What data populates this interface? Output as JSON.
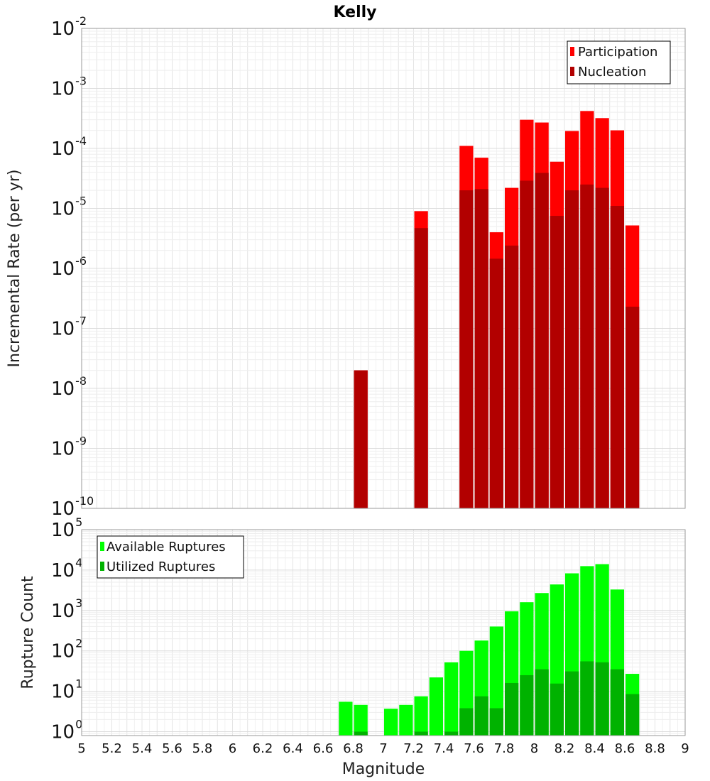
{
  "chart_data": [
    {
      "type": "bar",
      "title": "Kelly",
      "xlabel": "",
      "ylabel": "Incremental Rate (per yr)",
      "yscale": "log",
      "xlim": [
        5,
        9
      ],
      "ylim": [
        1e-10,
        0.01
      ],
      "y_ticks": [
        {
          "base": "10",
          "exp": "-10",
          "value": 1e-10
        },
        {
          "base": "10",
          "exp": "-9",
          "value": 1e-09
        },
        {
          "base": "10",
          "exp": "-8",
          "value": 1e-08
        },
        {
          "base": "10",
          "exp": "-7",
          "value": 1e-07
        },
        {
          "base": "10",
          "exp": "-6",
          "value": 1e-06
        },
        {
          "base": "10",
          "exp": "-5",
          "value": 1e-05
        },
        {
          "base": "10",
          "exp": "-4",
          "value": 0.0001
        },
        {
          "base": "10",
          "exp": "-3",
          "value": 0.001
        },
        {
          "base": "10",
          "exp": "-2",
          "value": 0.01
        }
      ],
      "grid": true,
      "legend_position": "top-right",
      "series": [
        {
          "name": "Participation",
          "color": "#ff0000",
          "points": [
            {
              "x": 6.85,
              "y": 2e-08
            },
            {
              "x": 7.25,
              "y": 9e-06
            },
            {
              "x": 7.55,
              "y": 0.00011
            },
            {
              "x": 7.65,
              "y": 7e-05
            },
            {
              "x": 7.75,
              "y": 4e-06
            },
            {
              "x": 7.85,
              "y": 2.2e-05
            },
            {
              "x": 7.95,
              "y": 0.0003
            },
            {
              "x": 8.05,
              "y": 0.00027
            },
            {
              "x": 8.15,
              "y": 6e-05
            },
            {
              "x": 8.25,
              "y": 0.000195
            },
            {
              "x": 8.35,
              "y": 0.00042
            },
            {
              "x": 8.45,
              "y": 0.00032
            },
            {
              "x": 8.55,
              "y": 0.0002
            },
            {
              "x": 8.65,
              "y": 5.2e-06
            }
          ]
        },
        {
          "name": "Nucleation",
          "color": "#b20000",
          "points": [
            {
              "x": 6.85,
              "y": 2e-08
            },
            {
              "x": 7.25,
              "y": 4.7e-06
            },
            {
              "x": 7.55,
              "y": 2e-05
            },
            {
              "x": 7.65,
              "y": 2.1e-05
            },
            {
              "x": 7.75,
              "y": 1.45e-06
            },
            {
              "x": 7.85,
              "y": 2.4e-06
            },
            {
              "x": 7.95,
              "y": 2.9e-05
            },
            {
              "x": 8.05,
              "y": 3.9e-05
            },
            {
              "x": 8.15,
              "y": 7.5e-06
            },
            {
              "x": 8.25,
              "y": 2e-05
            },
            {
              "x": 8.35,
              "y": 2.5e-05
            },
            {
              "x": 8.45,
              "y": 2.2e-05
            },
            {
              "x": 8.55,
              "y": 1.1e-05
            },
            {
              "x": 8.65,
              "y": 2.3e-07
            }
          ]
        }
      ]
    },
    {
      "type": "bar",
      "title": "",
      "xlabel": "Magnitude",
      "ylabel": "Rupture Count",
      "yscale": "log",
      "xlim": [
        5,
        9
      ],
      "ylim": [
        0.8,
        100000.0
      ],
      "x_ticks": [
        "5",
        "5.2",
        "5.4",
        "5.6",
        "5.8",
        "6",
        "6.2",
        "6.4",
        "6.6",
        "6.8",
        "7",
        "7.2",
        "7.4",
        "7.6",
        "7.8",
        "8",
        "8.2",
        "8.4",
        "8.6",
        "8.8",
        "9"
      ],
      "y_ticks": [
        {
          "base": "10",
          "exp": "0",
          "value": 1
        },
        {
          "base": "10",
          "exp": "1",
          "value": 10
        },
        {
          "base": "10",
          "exp": "2",
          "value": 100
        },
        {
          "base": "10",
          "exp": "3",
          "value": 1000
        },
        {
          "base": "10",
          "exp": "4",
          "value": 10000
        },
        {
          "base": "10",
          "exp": "5",
          "value": 100000
        }
      ],
      "grid": true,
      "legend_position": "top-left",
      "series": [
        {
          "name": "Available Ruptures",
          "color": "#00ff00",
          "points": [
            {
              "x": 6.75,
              "y": 5.5
            },
            {
              "x": 6.85,
              "y": 4.6
            },
            {
              "x": 7.05,
              "y": 3.7
            },
            {
              "x": 7.15,
              "y": 4.6
            },
            {
              "x": 7.25,
              "y": 7.5
            },
            {
              "x": 7.35,
              "y": 22
            },
            {
              "x": 7.45,
              "y": 52
            },
            {
              "x": 7.55,
              "y": 100
            },
            {
              "x": 7.65,
              "y": 180
            },
            {
              "x": 7.75,
              "y": 400
            },
            {
              "x": 7.85,
              "y": 950
            },
            {
              "x": 7.95,
              "y": 1600
            },
            {
              "x": 8.05,
              "y": 2700
            },
            {
              "x": 8.15,
              "y": 4400
            },
            {
              "x": 8.25,
              "y": 8300
            },
            {
              "x": 8.35,
              "y": 12500
            },
            {
              "x": 8.45,
              "y": 14000
            },
            {
              "x": 8.55,
              "y": 3300
            },
            {
              "x": 8.65,
              "y": 27
            }
          ]
        },
        {
          "name": "Utilized Ruptures",
          "color": "#00b200",
          "points": [
            {
              "x": 6.85,
              "y": 1
            },
            {
              "x": 7.25,
              "y": 1
            },
            {
              "x": 7.45,
              "y": 1
            },
            {
              "x": 7.55,
              "y": 3.8
            },
            {
              "x": 7.65,
              "y": 7.5
            },
            {
              "x": 7.75,
              "y": 3.8
            },
            {
              "x": 7.85,
              "y": 16
            },
            {
              "x": 7.95,
              "y": 25
            },
            {
              "x": 8.05,
              "y": 35
            },
            {
              "x": 8.15,
              "y": 15.5
            },
            {
              "x": 8.25,
              "y": 31
            },
            {
              "x": 8.35,
              "y": 55
            },
            {
              "x": 8.45,
              "y": 52
            },
            {
              "x": 8.55,
              "y": 35
            },
            {
              "x": 8.65,
              "y": 8.5
            }
          ]
        }
      ]
    }
  ]
}
